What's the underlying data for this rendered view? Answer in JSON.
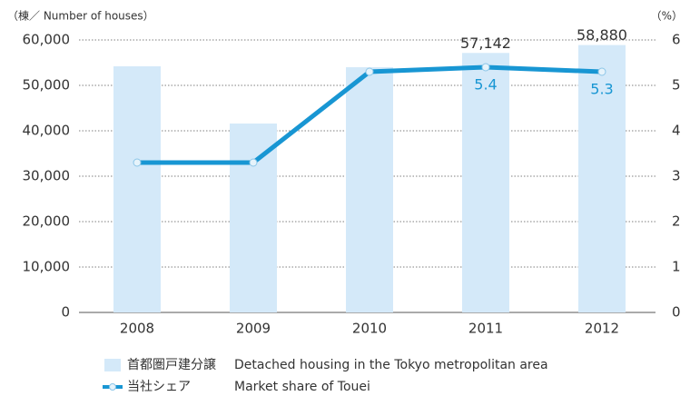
{
  "chart_data": {
    "type": "bar-line",
    "y_axis_label": "（棟／ Number of houses）",
    "y2_axis_label": "（%）",
    "categories": [
      "2008",
      "2009",
      "2010",
      "2011",
      "2012"
    ],
    "series": [
      {
        "name": "首都圏戸建分譲",
        "name_en": "Detached housing in the Tokyo metropolitan area",
        "type": "bar",
        "color": "#d4e9f9",
        "values": [
          54200,
          41600,
          54000,
          57142,
          58880
        ],
        "value_labels": [
          null,
          null,
          null,
          "57,142",
          "58,880"
        ]
      },
      {
        "name": "当社シェア",
        "name_en": "Market share of Touei",
        "type": "line",
        "color": "#1896d3",
        "axis": "y2",
        "values": [
          3.3,
          3.3,
          5.3,
          5.4,
          5.3
        ],
        "value_labels": [
          null,
          null,
          null,
          "5.4",
          "5.3"
        ]
      }
    ],
    "ylim": [
      0,
      60000
    ],
    "yticks": [
      0,
      {
        "value": 10000,
        "label": "10,000"
      },
      {
        "value": 20000,
        "label": "20,000"
      },
      {
        "value": 30000,
        "label": "30,000"
      },
      {
        "value": 40000,
        "label": "40,000"
      },
      {
        "value": 50000,
        "label": "50,000"
      },
      {
        "value": 60000,
        "label": "60,000"
      }
    ],
    "y2lim": [
      0,
      6
    ],
    "y2ticks": [
      0,
      1,
      2,
      3,
      4,
      5,
      6
    ],
    "grid": true
  }
}
